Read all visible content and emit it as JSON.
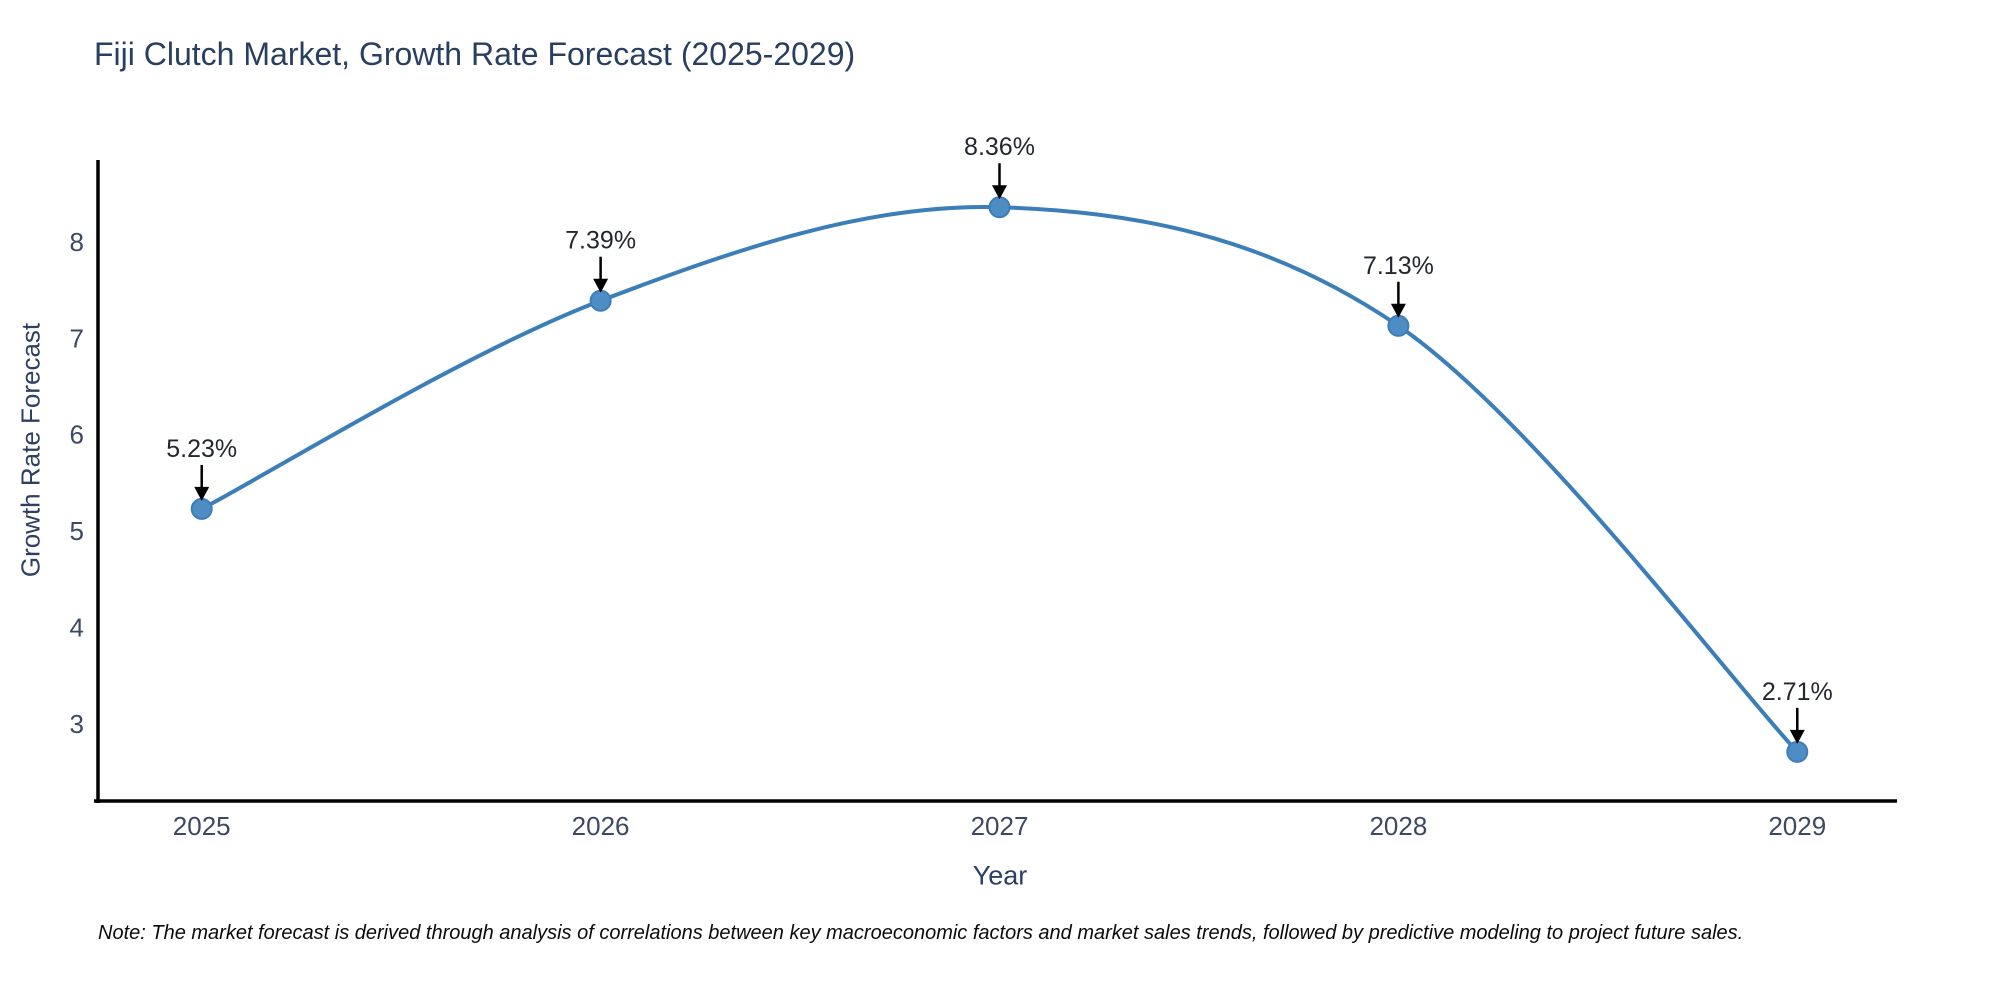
{
  "chart_data": {
    "type": "line",
    "title": "Fiji Clutch Market, Growth Rate Forecast (2025-2029)",
    "x": [
      2025,
      2026,
      2027,
      2028,
      2029
    ],
    "values": [
      5.23,
      7.39,
      8.36,
      7.13,
      2.71
    ],
    "point_labels": [
      "5.23%",
      "7.39%",
      "8.36%",
      "7.13%",
      "2.71%"
    ],
    "xlabel": "Year",
    "ylabel": "Growth Rate Forecast",
    "y_ticks": [
      3,
      4,
      5,
      6,
      7,
      8
    ],
    "xlim": [
      2024.74,
      2029.25
    ],
    "ylim": [
      2.2,
      8.85
    ],
    "grid": false,
    "legend": "none",
    "line_color": "#3c7eb8",
    "marker_color": "#4e8cc4",
    "axis_color": "#000000",
    "arrow_color": "#000000",
    "note": "Note: The market forecast is derived through analysis of correlations between key macroeconomic factors and market sales trends, followed by predictive modeling to project future sales."
  }
}
